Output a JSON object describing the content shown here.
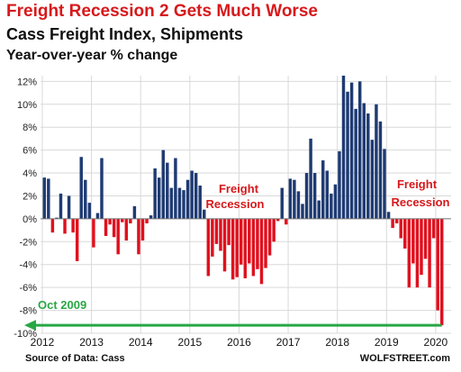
{
  "header": {
    "title": "Freight Recession 2 Gets Much Worse",
    "subtitle": "Cass Freight Index, Shipments",
    "ylabel": "Year-over-year % change"
  },
  "footer": {
    "source": "Source of Data: Cass",
    "brand": "WOLFSTREET.com"
  },
  "colors": {
    "positive": "#1f3b73",
    "negative": "#e0101e",
    "annotation_red": "#d7191c",
    "arrow": "#28a745",
    "grid": "#d9d9d9"
  },
  "chart_data": {
    "type": "bar",
    "title": "Freight Recession 2 Gets Much Worse",
    "subtitle": "Cass Freight Index, Shipments",
    "xlabel": "",
    "ylabel": "Year-over-year % change",
    "ylim": [
      -10,
      12.5
    ],
    "yticks": [
      12,
      10,
      8,
      6,
      4,
      2,
      0,
      -2,
      -4,
      -6,
      -8,
      -10
    ],
    "ytick_labels": [
      "12%",
      "10%",
      "8%",
      "6%",
      "4%",
      "2%",
      "0%",
      "-2%",
      "-4%",
      "-6%",
      "-8%",
      "-10%"
    ],
    "x_tick_labels": [
      "2012",
      "2013",
      "2014",
      "2015",
      "2016",
      "2017",
      "2018",
      "2019",
      "2020"
    ],
    "x_start": "2012-01",
    "grid": true,
    "series": [
      {
        "values": [
          3.6,
          3.5,
          -1.2,
          0.1,
          2.2,
          -1.3,
          2.0,
          -1.2,
          -3.7,
          5.4,
          3.4,
          1.4,
          -2.5,
          0.5,
          5.3,
          -1.5,
          -0.5,
          -1.6,
          -3.1,
          -0.3,
          -1.9,
          -0.4,
          1.1,
          -3.1,
          -1.9,
          -0.4,
          0.3,
          4.4,
          3.6,
          6.0,
          4.9,
          2.7,
          5.3,
          2.7,
          2.5,
          3.4,
          4.2,
          4.0,
          2.9,
          0.8,
          -5.0,
          -3.3,
          -2.2,
          -2.8,
          -4.6,
          -2.3,
          -5.3,
          -5.1,
          -4.0,
          -5.2,
          -3.9,
          -5.0,
          -4.4,
          -5.7,
          -4.3,
          -3.2,
          -2.0,
          -0.2,
          2.7,
          -0.5,
          3.5,
          3.4,
          2.4,
          1.3,
          4.0,
          7.0,
          4.0,
          1.6,
          5.1,
          4.2,
          2.2,
          3.0,
          5.9,
          12.5,
          11.1,
          11.9,
          9.6,
          12.0,
          10.1,
          9.2,
          6.9,
          10.0,
          8.5,
          6.1,
          0.6,
          -0.8,
          -0.4,
          -1.7,
          -2.6,
          -6.0,
          -3.9,
          -6.0,
          -4.9,
          -3.5,
          -6.0,
          -1.7,
          -8.0,
          -9.3
        ]
      }
    ],
    "annotations": [
      {
        "text": "Freight",
        "color": "#d7191c"
      },
      {
        "text": "Recession",
        "color": "#d7191c"
      },
      {
        "text": "Freight",
        "color": "#d7191c"
      },
      {
        "text": "Recession",
        "color": "#d7191c"
      },
      {
        "text": "Oct 2009",
        "color": "#28a745",
        "value": -9.3
      }
    ]
  }
}
